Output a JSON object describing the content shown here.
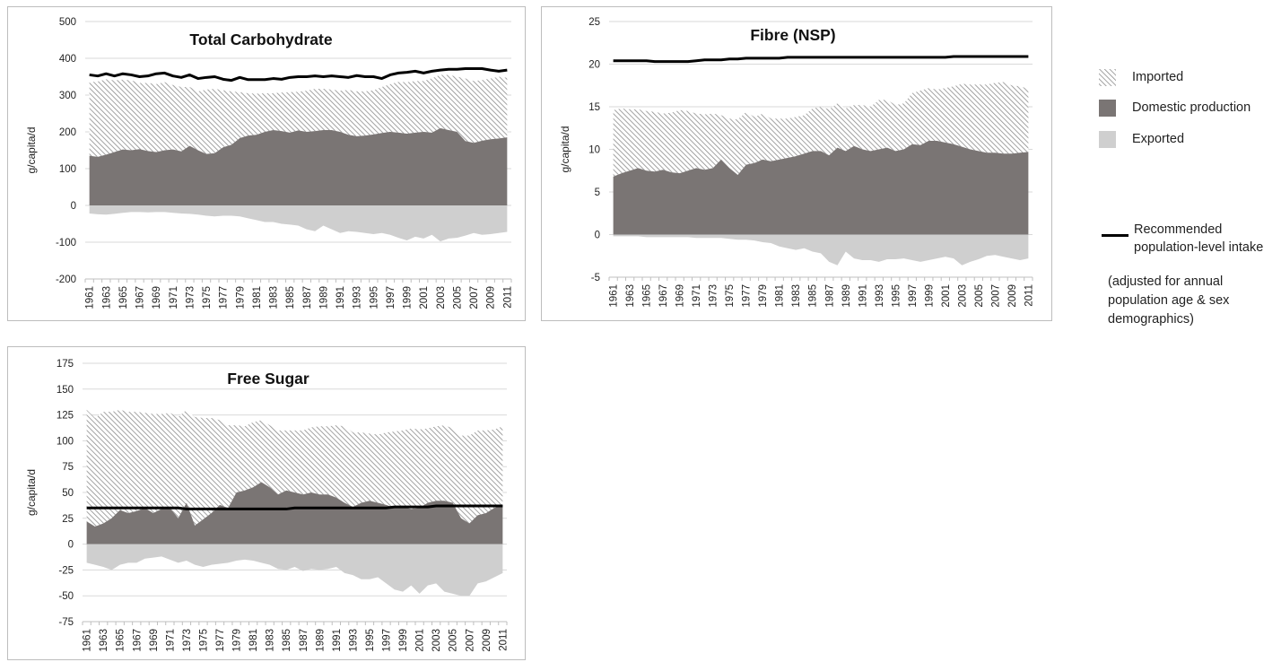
{
  "legend": {
    "imported": "Imported",
    "domestic": "Domestic production",
    "exported": "Exported",
    "recommended_line1": "Recommended",
    "recommended_line2": "population-level intake",
    "note_line1": "(adjusted for annual",
    "note_line2": "population age & sex",
    "note_line3": "demographics)"
  },
  "colors": {
    "imported_hatch": "#8c8c8c",
    "domestic": "#7a7574",
    "exported": "#cfcfcf",
    "recommended": "#000000",
    "gridline": "#d9d9d9",
    "axis_text": "#222222"
  },
  "chart_data": [
    {
      "id": "carb",
      "type": "area",
      "title": "Total Carbohydrate",
      "ylabel": "g/capita/d",
      "ylim": [
        -200,
        500
      ],
      "yticks": [
        -200,
        -100,
        0,
        100,
        200,
        300,
        400,
        500
      ],
      "grid": true,
      "x": [
        1961,
        1962,
        1963,
        1964,
        1965,
        1966,
        1967,
        1968,
        1969,
        1970,
        1971,
        1972,
        1973,
        1974,
        1975,
        1976,
        1977,
        1978,
        1979,
        1980,
        1981,
        1982,
        1983,
        1984,
        1985,
        1986,
        1987,
        1988,
        1989,
        1990,
        1991,
        1992,
        1993,
        1994,
        1995,
        1996,
        1997,
        1998,
        1999,
        2000,
        2001,
        2002,
        2003,
        2004,
        2005,
        2006,
        2007,
        2008,
        2009,
        2010,
        2011
      ],
      "xtick_labels": [
        "1961",
        "1963",
        "1965",
        "1967",
        "1969",
        "1971",
        "1973",
        "1975",
        "1977",
        "1979",
        "1981",
        "1983",
        "1985",
        "1987",
        "1989",
        "1991",
        "1993",
        "1995",
        "1997",
        "1999",
        "2001",
        "2003",
        "2005",
        "2007",
        "2009",
        "2011"
      ],
      "series": [
        {
          "name": "Domestic production",
          "values": [
            135,
            132,
            138,
            145,
            152,
            150,
            153,
            148,
            145,
            150,
            152,
            147,
            162,
            150,
            140,
            142,
            158,
            165,
            183,
            190,
            192,
            200,
            205,
            202,
            198,
            204,
            200,
            202,
            205,
            205,
            200,
            192,
            188,
            190,
            193,
            197,
            200,
            198,
            195,
            198,
            200,
            198,
            210,
            205,
            200,
            175,
            170,
            176,
            180,
            182,
            185
          ]
        },
        {
          "name": "Imported",
          "values": [
            200,
            205,
            205,
            195,
            190,
            190,
            180,
            185,
            185,
            185,
            175,
            175,
            160,
            160,
            175,
            175,
            155,
            145,
            125,
            115,
            112,
            105,
            100,
            105,
            110,
            105,
            112,
            115,
            112,
            110,
            112,
            122,
            122,
            120,
            120,
            125,
            130,
            138,
            140,
            140,
            138,
            148,
            145,
            150,
            150,
            170,
            168,
            165,
            165,
            168,
            162
          ]
        },
        {
          "name": "Exported",
          "values": [
            -22,
            -24,
            -25,
            -23,
            -20,
            -18,
            -18,
            -19,
            -18,
            -18,
            -20,
            -22,
            -23,
            -25,
            -28,
            -30,
            -28,
            -28,
            -30,
            -35,
            -40,
            -45,
            -45,
            -50,
            -52,
            -55,
            -65,
            -70,
            -55,
            -65,
            -75,
            -70,
            -72,
            -75,
            -78,
            -75,
            -80,
            -88,
            -95,
            -85,
            -90,
            -80,
            -98,
            -90,
            -88,
            -82,
            -75,
            -80,
            -78,
            -75,
            -72
          ]
        },
        {
          "name": "Recommended population-level intake",
          "values": [
            355,
            352,
            358,
            352,
            358,
            355,
            350,
            352,
            358,
            360,
            352,
            348,
            355,
            345,
            348,
            350,
            343,
            340,
            348,
            342,
            342,
            342,
            345,
            343,
            348,
            350,
            350,
            352,
            350,
            352,
            350,
            348,
            353,
            350,
            350,
            345,
            355,
            360,
            362,
            365,
            360,
            365,
            368,
            370,
            370,
            372,
            372,
            372,
            368,
            365,
            368
          ]
        }
      ]
    },
    {
      "id": "fibre",
      "type": "area",
      "title": "Fibre (NSP)",
      "ylabel": "g/capita/d",
      "ylim": [
        -5,
        25
      ],
      "yticks": [
        -5,
        0,
        5,
        10,
        15,
        20,
        25
      ],
      "grid": true,
      "x": [
        1961,
        1962,
        1963,
        1964,
        1965,
        1966,
        1967,
        1968,
        1969,
        1970,
        1971,
        1972,
        1973,
        1974,
        1975,
        1976,
        1977,
        1978,
        1979,
        1980,
        1981,
        1982,
        1983,
        1984,
        1985,
        1986,
        1987,
        1988,
        1989,
        1990,
        1991,
        1992,
        1993,
        1994,
        1995,
        1996,
        1997,
        1998,
        1999,
        2000,
        2001,
        2002,
        2003,
        2004,
        2005,
        2006,
        2007,
        2008,
        2009,
        2010,
        2011
      ],
      "xtick_labels": [
        "1961",
        "1963",
        "1965",
        "1967",
        "1969",
        "1971",
        "1973",
        "1975",
        "1977",
        "1979",
        "1981",
        "1983",
        "1985",
        "1987",
        "1989",
        "1991",
        "1993",
        "1995",
        "1997",
        "1999",
        "2001",
        "2003",
        "2005",
        "2007",
        "2009",
        "2011"
      ],
      "series": [
        {
          "name": "Domestic production",
          "values": [
            6.8,
            7.2,
            7.5,
            7.8,
            7.5,
            7.4,
            7.6,
            7.3,
            7.2,
            7.5,
            7.8,
            7.6,
            7.8,
            8.8,
            7.8,
            7.0,
            8.2,
            8.4,
            8.8,
            8.6,
            8.8,
            9.0,
            9.2,
            9.5,
            9.8,
            9.8,
            9.3,
            10.2,
            9.8,
            10.4,
            10.0,
            9.8,
            10.0,
            10.2,
            9.8,
            10.0,
            10.6,
            10.5,
            11.0,
            11.0,
            10.8,
            10.6,
            10.3,
            10.0,
            9.8,
            9.6,
            9.6,
            9.5,
            9.5,
            9.6,
            9.7
          ]
        },
        {
          "name": "Imported",
          "values": [
            7.8,
            7.6,
            7.2,
            6.9,
            7.0,
            7.0,
            6.6,
            7.0,
            7.4,
            7.0,
            6.4,
            6.5,
            6.4,
            5.2,
            5.8,
            6.5,
            6.2,
            5.4,
            5.4,
            5.0,
            4.8,
            4.6,
            4.6,
            4.5,
            5.0,
            5.2,
            5.4,
            5.2,
            5.0,
            4.8,
            5.2,
            5.2,
            5.8,
            5.6,
            5.4,
            5.4,
            6.0,
            6.4,
            6.2,
            6.0,
            6.4,
            6.8,
            7.4,
            7.6,
            7.8,
            8.0,
            8.2,
            8.4,
            8.0,
            7.8,
            7.4
          ]
        },
        {
          "name": "Exported",
          "values": [
            -0.2,
            -0.2,
            -0.2,
            -0.2,
            -0.3,
            -0.3,
            -0.3,
            -0.3,
            -0.3,
            -0.3,
            -0.4,
            -0.4,
            -0.4,
            -0.4,
            -0.5,
            -0.6,
            -0.6,
            -0.7,
            -0.9,
            -1.0,
            -1.4,
            -1.6,
            -1.8,
            -1.6,
            -2.0,
            -2.2,
            -3.2,
            -3.6,
            -2.0,
            -2.8,
            -3.0,
            -3.0,
            -3.2,
            -2.9,
            -2.9,
            -2.8,
            -3.0,
            -3.2,
            -3.0,
            -2.8,
            -2.6,
            -2.8,
            -3.6,
            -3.2,
            -2.9,
            -2.5,
            -2.4,
            -2.6,
            -2.8,
            -3.0,
            -2.8
          ]
        },
        {
          "name": "Recommended population-level intake",
          "values": [
            20.4,
            20.4,
            20.4,
            20.4,
            20.4,
            20.3,
            20.3,
            20.3,
            20.3,
            20.3,
            20.4,
            20.5,
            20.5,
            20.5,
            20.6,
            20.6,
            20.7,
            20.7,
            20.7,
            20.7,
            20.7,
            20.8,
            20.8,
            20.8,
            20.8,
            20.8,
            20.8,
            20.8,
            20.8,
            20.8,
            20.8,
            20.8,
            20.8,
            20.8,
            20.8,
            20.8,
            20.8,
            20.8,
            20.8,
            20.8,
            20.8,
            20.9,
            20.9,
            20.9,
            20.9,
            20.9,
            20.9,
            20.9,
            20.9,
            20.9,
            20.9
          ]
        }
      ]
    },
    {
      "id": "sugar",
      "type": "area",
      "title": "Free Sugar",
      "ylabel": "g/capita/d",
      "ylim": [
        -75,
        175
      ],
      "yticks": [
        -75,
        -50,
        -25,
        0,
        25,
        50,
        75,
        100,
        125,
        150,
        175
      ],
      "grid": true,
      "x": [
        1961,
        1962,
        1963,
        1964,
        1965,
        1966,
        1967,
        1968,
        1969,
        1970,
        1971,
        1972,
        1973,
        1974,
        1975,
        1976,
        1977,
        1978,
        1979,
        1980,
        1981,
        1982,
        1983,
        1984,
        1985,
        1986,
        1987,
        1988,
        1989,
        1990,
        1991,
        1992,
        1993,
        1994,
        1995,
        1996,
        1997,
        1998,
        1999,
        2000,
        2001,
        2002,
        2003,
        2004,
        2005,
        2006,
        2007,
        2008,
        2009,
        2010,
        2011
      ],
      "xtick_labels": [
        "1961",
        "1963",
        "1965",
        "1967",
        "1969",
        "1971",
        "1973",
        "1975",
        "1977",
        "1979",
        "1981",
        "1983",
        "1985",
        "1987",
        "1989",
        "1991",
        "1993",
        "1995",
        "1997",
        "1999",
        "2001",
        "2003",
        "2005",
        "2007",
        "2009",
        "2011"
      ],
      "series": [
        {
          "name": "Domestic production",
          "values": [
            22,
            17,
            20,
            25,
            33,
            30,
            32,
            35,
            30,
            34,
            35,
            25,
            40,
            18,
            24,
            30,
            38,
            35,
            50,
            52,
            55,
            60,
            55,
            48,
            52,
            50,
            48,
            50,
            48,
            48,
            45,
            40,
            36,
            40,
            42,
            40,
            38,
            35,
            36,
            34,
            35,
            40,
            42,
            42,
            40,
            25,
            20,
            28,
            30,
            35,
            38
          ]
        },
        {
          "name": "Imported",
          "values": [
            108,
            105,
            108,
            103,
            97,
            98,
            96,
            92,
            96,
            92,
            92,
            98,
            90,
            105,
            98,
            92,
            82,
            80,
            65,
            62,
            63,
            60,
            60,
            62,
            58,
            60,
            62,
            63,
            66,
            66,
            70,
            74,
            72,
            68,
            65,
            66,
            70,
            74,
            74,
            78,
            76,
            72,
            72,
            73,
            72,
            80,
            85,
            82,
            80,
            76,
            76
          ]
        },
        {
          "name": "Exported",
          "values": [
            -18,
            -20,
            -22,
            -25,
            -20,
            -18,
            -18,
            -14,
            -13,
            -12,
            -15,
            -18,
            -16,
            -20,
            -22,
            -20,
            -19,
            -18,
            -16,
            -15,
            -16,
            -18,
            -20,
            -24,
            -25,
            -22,
            -26,
            -24,
            -25,
            -24,
            -22,
            -28,
            -30,
            -34,
            -34,
            -32,
            -38,
            -44,
            -46,
            -40,
            -48,
            -40,
            -38,
            -46,
            -48,
            -50,
            -50,
            -38,
            -36,
            -32,
            -28
          ]
        },
        {
          "name": "Recommended population-level intake",
          "values": [
            35,
            35,
            35,
            35,
            35,
            35,
            35,
            35,
            35,
            35,
            35,
            35,
            34,
            34,
            34,
            34,
            34,
            34,
            34,
            34,
            34,
            34,
            34,
            34,
            34,
            35,
            35,
            35,
            35,
            35,
            35,
            35,
            35,
            35,
            35,
            35,
            35,
            36,
            36,
            36,
            36,
            36,
            37,
            37,
            37,
            37,
            37,
            37,
            37,
            37,
            37
          ]
        }
      ]
    }
  ]
}
